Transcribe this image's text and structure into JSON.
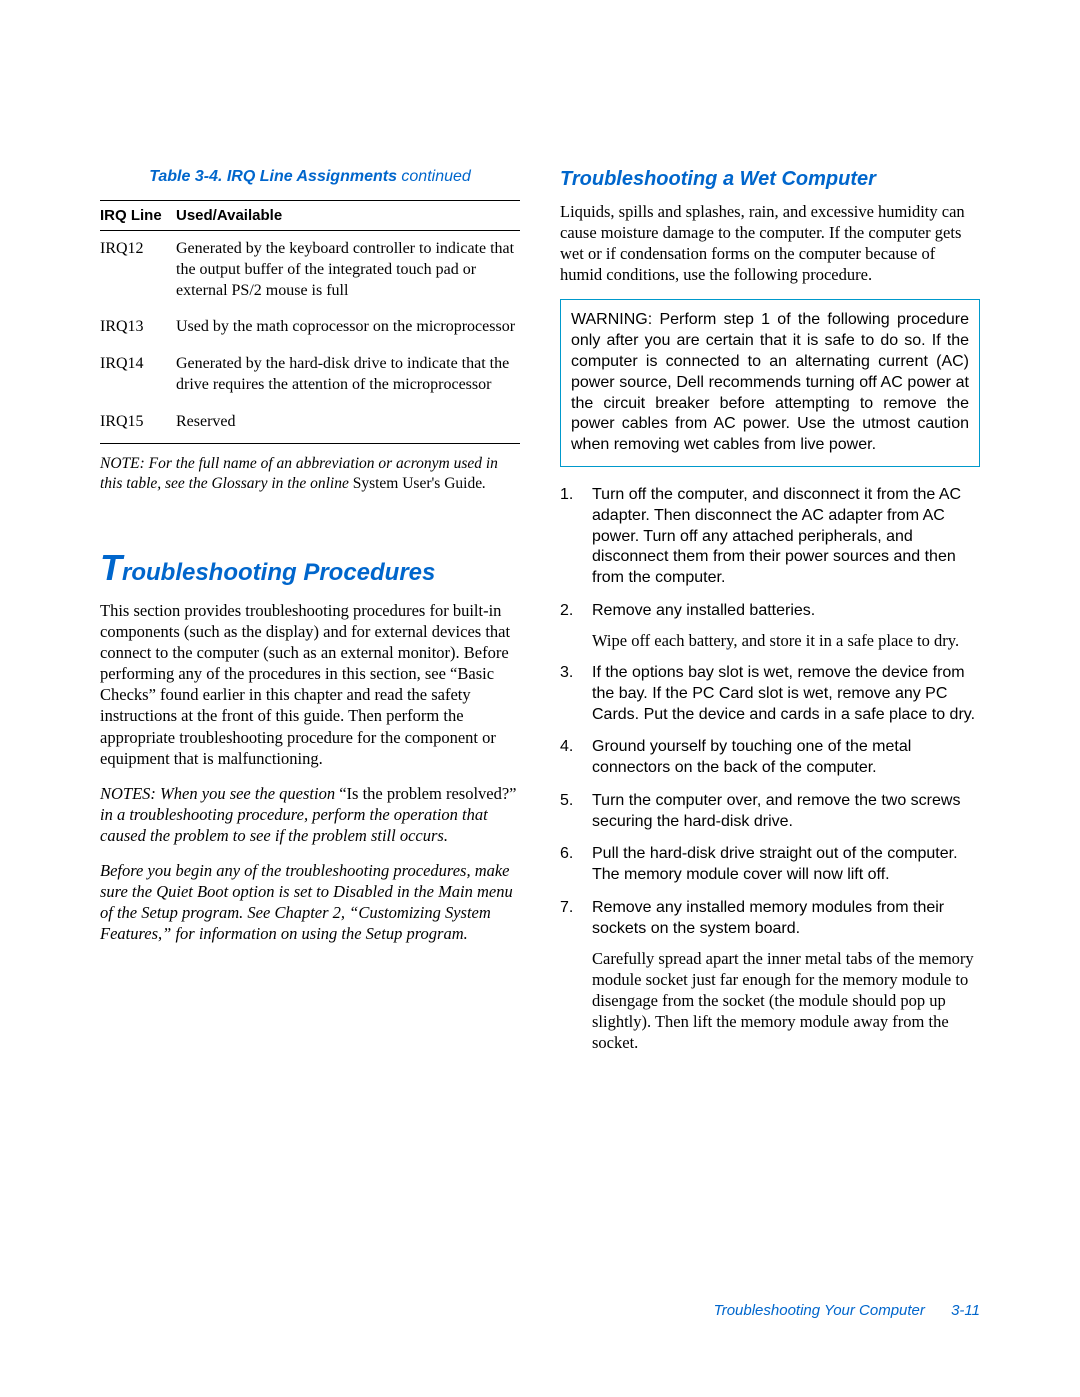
{
  "colors": {
    "accent": "#0066cc",
    "warning_border": "#0099cc",
    "text": "#000000",
    "background": "#ffffff"
  },
  "fonts": {
    "serif": "Times New Roman",
    "sans": "Arial",
    "body_size_pt": 12,
    "heading_size_pt": 18,
    "subheading_size_pt": 15,
    "caption_size_pt": 12
  },
  "table": {
    "caption_prefix": "Table 3-4.  IRQ Line Assignments ",
    "caption_suffix": "continued",
    "headers": [
      "IRQ Line",
      "Used/Available"
    ],
    "rows": [
      {
        "c0": "IRQ12",
        "c1": "Generated by the keyboard controller to indicate that the output buffer of the integrated touch pad or external PS/2 mouse is full"
      },
      {
        "c0": "IRQ13",
        "c1": "Used by the math coprocessor on the microprocessor"
      },
      {
        "c0": "IRQ14",
        "c1": "Generated by the hard-disk drive to indicate that the drive requires the attention of the microprocessor"
      },
      {
        "c0": "IRQ15",
        "c1": "Reserved"
      }
    ],
    "note_prefix": "NOTE: For the full name of an abbreviation or acronym used in this table, see the Glossary in the online ",
    "note_roman": "System User's Guide",
    "note_suffix": "."
  },
  "section": {
    "dropcap": "T",
    "rest": "roubleshooting Procedures",
    "para1": "This section provides troubleshooting procedures for built-in components (such as the display) and for external devices that connect to the computer (such as an external monitor). Before performing any of the procedures in this section, see “Basic Checks” found earlier in this chapter and read the safety instructions at the front of this guide. Then perform the appropriate troubleshooting procedure for the component or equipment that is malfunctioning.",
    "notes1_a": "NOTES: When you see the question ",
    "notes1_q": "“Is the problem resolved?”",
    "notes1_b": " in a troubleshooting procedure, perform the operation that caused the problem to see if the problem still occurs.",
    "notes2": "Before you begin any of the troubleshooting procedures, make sure the Quiet Boot option is set to Disabled in the Main menu of the Setup program. See Chapter 2, “Customizing System Features,” for information on using the Setup program."
  },
  "right": {
    "heading": "Troubleshooting a Wet Computer",
    "intro": "Liquids, spills and splashes, rain, and excessive humidity can cause moisture damage to the computer. If the computer gets wet or if condensation forms on the computer because of humid conditions, use the following procedure.",
    "warning": "WARNING: Perform step 1 of the following procedure only after you are certain that it is safe to do so. If the computer is connected to an alternating current (AC) power source, Dell recommends turning off AC power at the circuit breaker before attempting to remove the power cables from AC power. Use the utmost caution when removing wet cables from live power.",
    "steps": [
      {
        "text": "Turn off the computer, and disconnect it from the AC adapter. Then disconnect the AC adapter from AC power. Turn off any attached peripherals, and disconnect them from their power sources and then from the computer."
      },
      {
        "text": "Remove any installed batteries.",
        "sub": "Wipe off each battery, and store it in a safe place to dry."
      },
      {
        "text": "If the options bay slot is wet, remove the device from the bay. If the PC Card slot is wet, remove any PC Cards. Put the device and cards in a safe place to dry."
      },
      {
        "text": "Ground yourself by touching one of the metal connectors on the back of the computer."
      },
      {
        "text": "Turn the computer over, and remove the two screws securing the hard-disk drive."
      },
      {
        "text": "Pull the hard-disk drive straight out of the computer. The memory module cover will now lift off."
      },
      {
        "text": "Remove any installed memory modules from their sockets on the system board.",
        "sub": "Carefully spread apart the inner metal tabs of the memory module socket just far enough for the memory module to disengage from the socket (the module should pop up slightly). Then lift the memory module away from the socket."
      }
    ]
  },
  "footer": {
    "text": "Troubleshooting Your Computer",
    "page": "3-11"
  }
}
